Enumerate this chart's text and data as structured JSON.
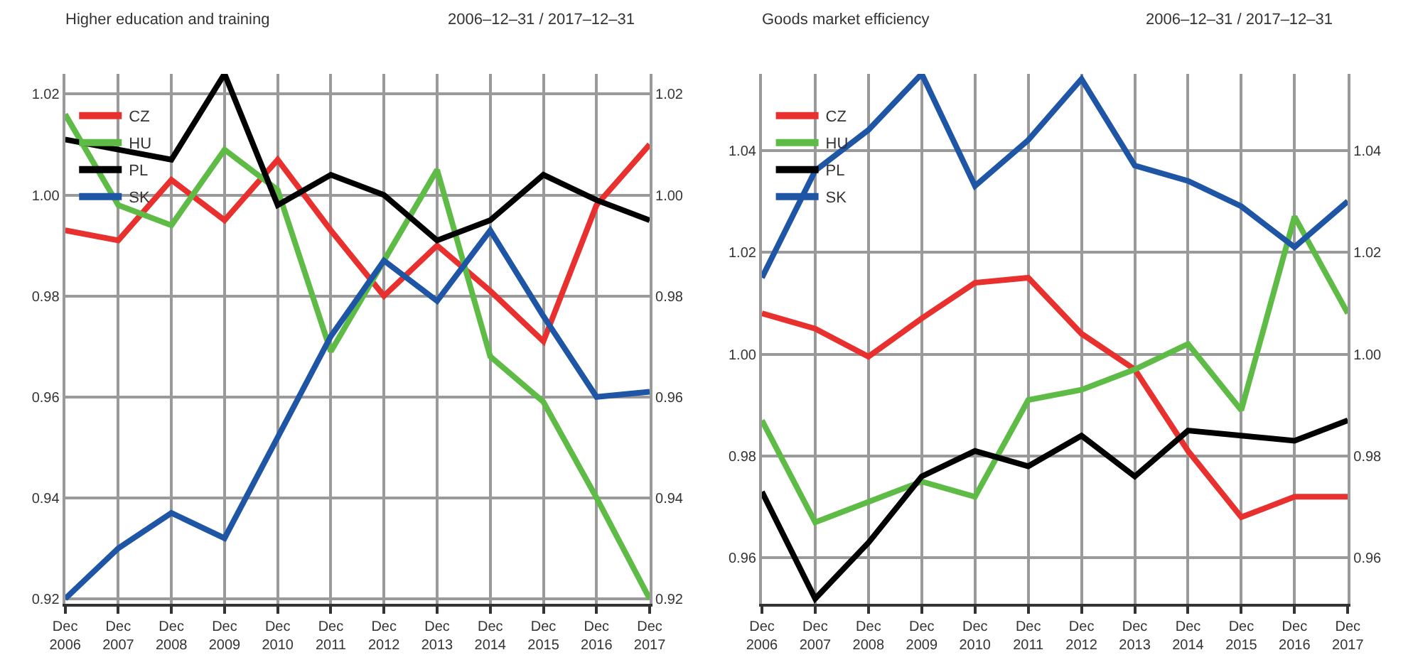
{
  "chart_data": [
    {
      "type": "line",
      "title": "Higher education and training",
      "subtitle": "2006–12–31 / 2017–12–31",
      "categories": [
        "Dec 2006",
        "Dec 2007",
        "Dec 2008",
        "Dec 2009",
        "Dec 2010",
        "Dec 2011",
        "Dec 2012",
        "Dec 2013",
        "Dec 2014",
        "Dec 2015",
        "Dec 2016",
        "Dec 2017"
      ],
      "series": [
        {
          "name": "CZ",
          "color": "#e8312f",
          "values": [
            0.993,
            0.991,
            1.003,
            0.995,
            1.007,
            0.993,
            0.98,
            0.99,
            0.981,
            0.971,
            0.998,
            1.01
          ]
        },
        {
          "name": "HU",
          "color": "#5dbb46",
          "values": [
            1.016,
            0.998,
            0.994,
            1.009,
            1.001,
            0.969,
            0.987,
            1.005,
            0.968,
            0.959,
            0.94,
            0.92
          ]
        },
        {
          "name": "PL",
          "color": "#000000",
          "values": [
            1.011,
            1.009,
            1.007,
            1.024,
            0.998,
            1.004,
            1.0,
            0.991,
            0.995,
            1.004,
            0.999,
            0.995
          ]
        },
        {
          "name": "SK",
          "color": "#1f55a5",
          "values": [
            0.92,
            0.93,
            0.937,
            0.932,
            0.952,
            0.972,
            0.987,
            0.979,
            0.993,
            0.976,
            0.96,
            0.961
          ]
        }
      ],
      "ylim": [
        0.919,
        1.024
      ],
      "yticks": [
        {
          "value": 0.92,
          "label": "0.92"
        },
        {
          "value": 0.94,
          "label": "0.94"
        },
        {
          "value": 0.96,
          "label": "0.96"
        },
        {
          "value": 0.98,
          "label": "0.98"
        },
        {
          "value": 1.0,
          "label": "1.00"
        },
        {
          "value": 1.02,
          "label": "1.02"
        }
      ],
      "y2lim": [
        0.919,
        1.024
      ],
      "y2ticks": [
        {
          "value": 0.92,
          "label": "0.92"
        },
        {
          "value": 0.94,
          "label": "0.94"
        },
        {
          "value": 0.96,
          "label": "0.96"
        },
        {
          "value": 0.98,
          "label": "0.98"
        },
        {
          "value": 1.0,
          "label": "1.00"
        },
        {
          "value": 1.02,
          "label": "1.02"
        }
      ],
      "grid": true,
      "legend": "top left",
      "marker": "none",
      "line_style": "solid"
    },
    {
      "type": "line",
      "title": "Goods market efficiency",
      "subtitle": "2006–12–31 / 2017–12–31",
      "categories": [
        "Dec 2006",
        "Dec 2007",
        "Dec 2008",
        "Dec 2009",
        "Dec 2010",
        "Dec 2011",
        "Dec 2012",
        "Dec 2013",
        "Dec 2014",
        "Dec 2015",
        "Dec 2016",
        "Dec 2017"
      ],
      "series": [
        {
          "name": "CZ",
          "color": "#e8312f",
          "values": [
            1.008,
            1.005,
            0.9995,
            1.007,
            1.014,
            1.015,
            1.004,
            0.997,
            0.981,
            0.968,
            0.972,
            0.972
          ]
        },
        {
          "name": "HU",
          "color": "#5dbb46",
          "values": [
            0.987,
            0.967,
            0.971,
            0.975,
            0.972,
            0.991,
            0.993,
            0.997,
            1.002,
            0.989,
            1.027,
            1.008
          ]
        },
        {
          "name": "PL",
          "color": "#000000",
          "values": [
            0.973,
            0.952,
            0.963,
            0.976,
            0.981,
            0.978,
            0.984,
            0.976,
            0.985,
            0.984,
            0.983,
            0.987
          ]
        },
        {
          "name": "SK",
          "color": "#1f55a5",
          "values": [
            1.015,
            1.036,
            1.044,
            1.055,
            1.033,
            1.042,
            1.054,
            1.037,
            1.034,
            1.029,
            1.021,
            1.03
          ]
        }
      ],
      "ylim": [
        0.951,
        1.055
      ],
      "yticks": [
        {
          "value": 0.96,
          "label": "0.96"
        },
        {
          "value": 0.98,
          "label": "0.98"
        },
        {
          "value": 1.0,
          "label": "1.00"
        },
        {
          "value": 1.02,
          "label": "1.02"
        },
        {
          "value": 1.04,
          "label": "1.04"
        }
      ],
      "y2lim": [
        0.951,
        1.055
      ],
      "y2ticks": [
        {
          "value": 0.96,
          "label": "0.96"
        },
        {
          "value": 0.98,
          "label": "0.98"
        },
        {
          "value": 1.0,
          "label": "1.00"
        },
        {
          "value": 1.02,
          "label": "1.02"
        },
        {
          "value": 1.04,
          "label": "1.04"
        }
      ],
      "grid": true,
      "legend": "top left",
      "marker": "none",
      "line_style": "solid"
    }
  ]
}
